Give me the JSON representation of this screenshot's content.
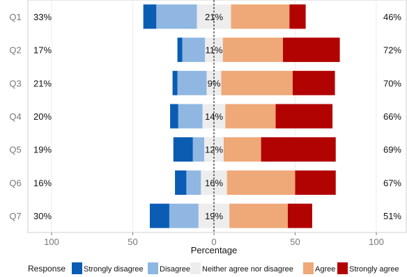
{
  "chart_data": {
    "type": "bar",
    "subtype": "diverging-stacked-likert",
    "categories": [
      "Q1",
      "Q2",
      "Q3",
      "Q4",
      "Q5",
      "Q6",
      "Q7"
    ],
    "series": [
      {
        "name": "Strongly disagree",
        "color": "#0b5cb3",
        "values": [
          8,
          3,
          3,
          5,
          12,
          7,
          12
        ]
      },
      {
        "name": "Disagree",
        "color": "#8fb7e2",
        "values": [
          25,
          14,
          18,
          15,
          7,
          9,
          18
        ]
      },
      {
        "name": "Neither agree nor disagree",
        "color": "#ededed",
        "values": [
          21,
          11,
          9,
          14,
          12,
          16,
          19
        ]
      },
      {
        "name": "Agree",
        "color": "#efa878",
        "values": [
          36,
          37,
          44,
          31,
          23,
          42,
          36
        ]
      },
      {
        "name": "Strongly agree",
        "color": "#b20303",
        "values": [
          10,
          35,
          26,
          35,
          46,
          25,
          15
        ]
      }
    ],
    "left_labels": [
      "33%",
      "17%",
      "21%",
      "20%",
      "19%",
      "16%",
      "30%"
    ],
    "center_labels": [
      "21%",
      "11%",
      "9%",
      "14%",
      "12%",
      "16%",
      "19%"
    ],
    "right_labels": [
      "46%",
      "72%",
      "70%",
      "66%",
      "69%",
      "67%",
      "51%"
    ],
    "xlim": [
      -100,
      100
    ],
    "x_ticks": [
      -100,
      -50,
      0,
      50,
      100
    ],
    "x_tick_labels": [
      "100",
      "50",
      "0",
      "50",
      "100"
    ],
    "xlabel": "Percentage",
    "grid": true,
    "legend": {
      "title": "Response",
      "placement": "bottom"
    }
  }
}
